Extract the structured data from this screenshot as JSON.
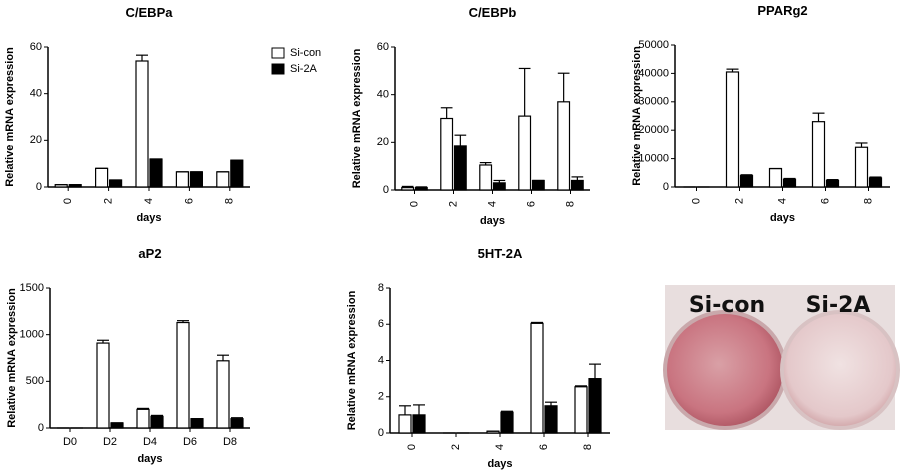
{
  "chart_data": [
    {
      "type": "bar",
      "title": "C/EBPa",
      "y_label": "Relative mRNA expression",
      "x_label": "days",
      "categories": [
        "0",
        "2",
        "4",
        "6",
        "8"
      ],
      "series": [
        {
          "name": "Si-con",
          "color": "#ffffff",
          "values": [
            1,
            8,
            54,
            6.5,
            6.5
          ],
          "errors": [
            0,
            0,
            2.5,
            0,
            0
          ]
        },
        {
          "name": "Si-2A",
          "color": "#000000",
          "values": [
            1,
            3,
            12,
            6.5,
            11.5
          ],
          "errors": [
            0,
            0,
            0,
            0,
            0
          ]
        }
      ],
      "ylim": [
        0,
        60
      ],
      "yticks": [
        0,
        20,
        40,
        60
      ],
      "legend": "right"
    },
    {
      "type": "bar",
      "title": "C/EBPb",
      "y_label": "Relative mRNA expression",
      "x_label": "days",
      "categories": [
        "0",
        "2",
        "4",
        "6",
        "8"
      ],
      "series": [
        {
          "color": "#ffffff",
          "values": [
            1,
            30,
            10.5,
            31,
            37
          ],
          "errors": [
            0.5,
            4.5,
            1,
            20,
            12
          ]
        },
        {
          "color": "#000000",
          "values": [
            1,
            18.5,
            3,
            4,
            4
          ],
          "errors": [
            0.3,
            4.5,
            1,
            0,
            1.5
          ]
        }
      ],
      "ylim": [
        0,
        60
      ],
      "yticks": [
        0,
        20,
        40,
        60
      ]
    },
    {
      "type": "bar",
      "title": "PPARg2",
      "y_label": "Relative mRNA expression",
      "x_label": "days",
      "categories": [
        "0",
        "2",
        "4",
        "6",
        "8"
      ],
      "series": [
        {
          "color": "#ffffff",
          "values": [
            0,
            40500,
            6500,
            23000,
            14000
          ],
          "errors": [
            0,
            1000,
            0,
            3000,
            1500
          ]
        },
        {
          "color": "#000000",
          "values": [
            0,
            4000,
            2700,
            2300,
            3200
          ],
          "errors": [
            0,
            300,
            300,
            300,
            300
          ]
        }
      ],
      "ylim": [
        0,
        50000
      ],
      "yticks": [
        0,
        10000,
        20000,
        30000,
        40000,
        50000
      ]
    },
    {
      "type": "bar",
      "title": "aP2",
      "y_label": "Relative mRNA expression",
      "x_label": "days",
      "categories": [
        "D0",
        "D2",
        "D4",
        "D6",
        "D8"
      ],
      "series": [
        {
          "color": "#ffffff",
          "values": [
            0,
            910,
            200,
            1130,
            720
          ],
          "errors": [
            0,
            30,
            10,
            20,
            60
          ]
        },
        {
          "color": "#000000",
          "values": [
            0,
            55,
            125,
            100,
            100
          ],
          "errors": [
            0,
            0,
            10,
            0,
            10
          ]
        }
      ],
      "ylim": [
        0,
        1500
      ],
      "yticks": [
        0,
        500,
        1000,
        1500
      ]
    },
    {
      "type": "bar",
      "title": "5HT-2A",
      "y_label": "Relative mRNA expression",
      "x_label": "days",
      "categories": [
        "0",
        "2",
        "4",
        "6",
        "8"
      ],
      "series": [
        {
          "color": "#ffffff",
          "values": [
            1,
            0,
            0.1,
            6.05,
            2.55
          ],
          "errors": [
            0.5,
            0,
            0,
            0.05,
            0.05
          ]
        },
        {
          "color": "#000000",
          "values": [
            1,
            0,
            1.15,
            1.5,
            3
          ],
          "errors": [
            0.55,
            0,
            0.05,
            0.2,
            0.8
          ]
        }
      ],
      "ylim": [
        0,
        8
      ],
      "yticks": [
        0,
        2,
        4,
        6,
        8
      ]
    }
  ],
  "photo": {
    "labels": [
      "Si-con",
      "Si-2A"
    ]
  }
}
